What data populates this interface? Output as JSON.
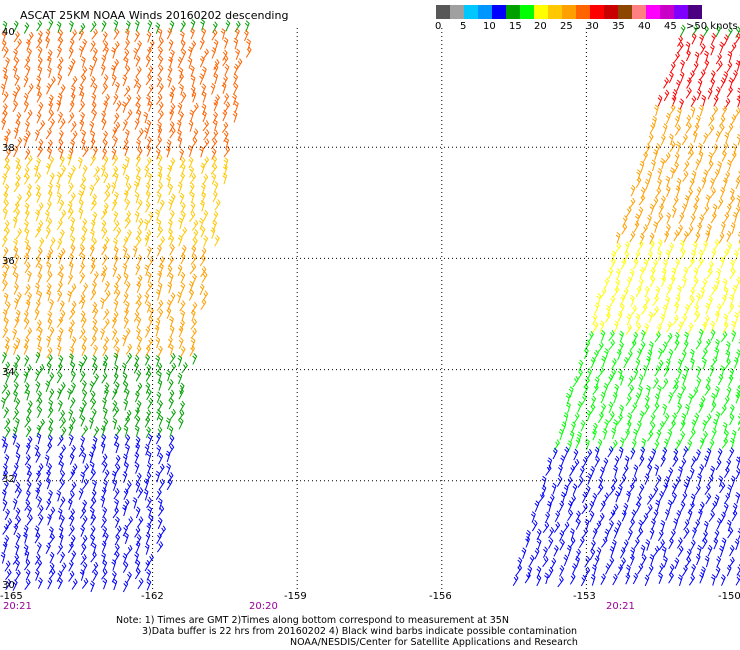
{
  "title": "ASCAT 25KM NOAA Winds 20160202 descending",
  "legend": {
    "colors": [
      "#585858",
      "#a0a0a0",
      "#00c8ff",
      "#0096ff",
      "#0000ff",
      "#00a000",
      "#00ff00",
      "#ffff00",
      "#ffc800",
      "#ffa000",
      "#ff6400",
      "#ff0000",
      "#c80000",
      "#8c4600",
      "#ff8080",
      "#ff00ff",
      "#c800c8",
      "#8000ff",
      "#4b0082"
    ],
    "labels": [
      "0",
      "5",
      "10",
      "15",
      "20",
      "25",
      "30",
      "35",
      "40",
      "45",
      ">50 knots"
    ],
    "units": "knots"
  },
  "map": {
    "lat_labels": [
      "40",
      "38",
      "36",
      "34",
      "32",
      "30"
    ],
    "lon_labels": [
      "-165",
      "-162",
      "-159",
      "-156",
      "-153",
      "-150"
    ],
    "lat_range": [
      30,
      40
    ],
    "lon_range": [
      -165,
      -150
    ],
    "grid": "dotted",
    "swath_times": [
      "20:21",
      "20:20",
      "20:21"
    ],
    "wind_speed_regions": [
      {
        "swath": "west",
        "lat_range": [
          37.8,
          40
        ],
        "speed_knots": 32,
        "color": "#ff6400"
      },
      {
        "swath": "west",
        "lat_range": [
          36.2,
          38
        ],
        "speed_knots": 27,
        "color": "#ffc800"
      },
      {
        "swath": "west",
        "lat_range": [
          34.2,
          36.2
        ],
        "speed_knots": 30,
        "color": "#ffa000"
      },
      {
        "swath": "west",
        "lat_range": [
          32.8,
          34.2
        ],
        "speed_knots": 17,
        "color": "#00a000"
      },
      {
        "swath": "west",
        "lat_range": [
          30,
          32.8
        ],
        "speed_knots": 12,
        "color": "#0000ff"
      },
      {
        "swath": "east",
        "lat_range": [
          38.6,
          40
        ],
        "speed_knots": 37,
        "color": "#ff0000"
      },
      {
        "swath": "east",
        "lat_range": [
          36.2,
          38.6
        ],
        "speed_knots": 30,
        "color": "#ffa000"
      },
      {
        "swath": "east",
        "lat_range": [
          34.6,
          36.2
        ],
        "speed_knots": 23,
        "color": "#ffff00"
      },
      {
        "swath": "east",
        "lat_range": [
          32.5,
          34.6
        ],
        "speed_knots": 17,
        "color": "#00ff00"
      },
      {
        "swath": "east",
        "lat_range": [
          30,
          32.5
        ],
        "speed_knots": 13,
        "color": "#0000ff"
      }
    ]
  },
  "notes": {
    "line1": "Note: 1) Times are GMT 2)Times along bottom correspond to measurement at 35N",
    "line2": "3)Data buffer is 22 hrs from 20160202 4) Black wind barbs indicate possible contamination",
    "line3": "NOAA/NESDIS/Center for Satellite Applications and Research"
  }
}
